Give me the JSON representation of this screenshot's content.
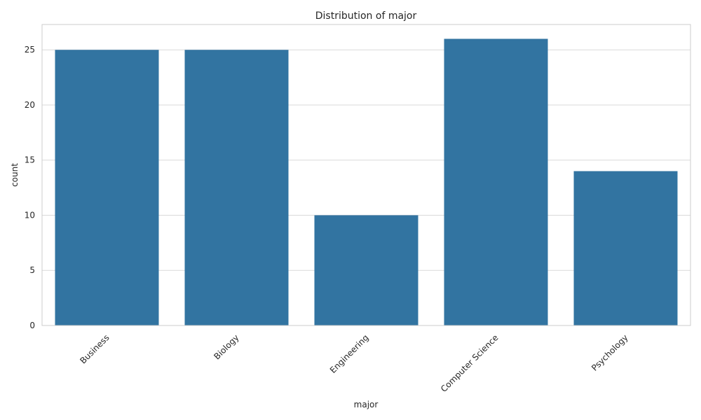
{
  "chart_data": {
    "type": "bar",
    "title": "Distribution of major",
    "xlabel": "major",
    "ylabel": "count",
    "categories": [
      "Business",
      "Biology",
      "Engineering",
      "Computer Science",
      "Psychology"
    ],
    "values": [
      25,
      25,
      10,
      26,
      14
    ],
    "ylim": [
      0,
      27.3
    ],
    "yticks": [
      0,
      5,
      10,
      15,
      20,
      25
    ],
    "grid": true,
    "legend": "none",
    "bar_color": "#3274a1",
    "grid_color": "#d9d9d9",
    "spine_color": "#cccccc"
  }
}
